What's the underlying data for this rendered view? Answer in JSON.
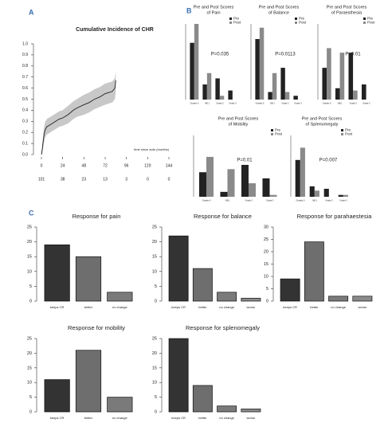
{
  "chart_data": [
    {
      "type": "line",
      "panel": "A",
      "title": "Cumulative Incidence of CHR",
      "x": [
        0,
        1,
        2,
        3,
        4,
        6,
        8,
        10,
        12,
        16,
        20,
        24,
        30,
        36,
        40,
        48,
        54,
        60,
        66,
        72,
        76,
        80,
        83,
        84
      ],
      "series": [
        {
          "color": "#222222",
          "band_color": "#c8c8c8",
          "values": [
            0,
            0.05,
            0.12,
            0.18,
            0.22,
            0.25,
            0.26,
            0.27,
            0.28,
            0.3,
            0.32,
            0.33,
            0.36,
            0.4,
            0.42,
            0.45,
            0.47,
            0.5,
            0.52,
            0.55,
            0.56,
            0.57,
            0.6,
            0.67
          ],
          "lower": [
            0,
            0.01,
            0.06,
            0.11,
            0.15,
            0.18,
            0.19,
            0.2,
            0.21,
            0.23,
            0.25,
            0.26,
            0.28,
            0.32,
            0.34,
            0.36,
            0.38,
            0.41,
            0.43,
            0.45,
            0.46,
            0.47,
            0.5,
            0.57
          ],
          "upper": [
            0,
            0.09,
            0.18,
            0.25,
            0.29,
            0.32,
            0.33,
            0.34,
            0.35,
            0.37,
            0.39,
            0.4,
            0.44,
            0.48,
            0.5,
            0.54,
            0.56,
            0.59,
            0.61,
            0.64,
            0.65,
            0.66,
            0.69,
            0.76
          ]
        }
      ],
      "xlim": [
        0,
        144
      ],
      "xticks": [
        0,
        24,
        48,
        72,
        96,
        120,
        144
      ],
      "ylim": [
        0,
        1
      ],
      "yticks": [
        {
          "value": 0,
          "label": "0.0"
        },
        0.1,
        0.2,
        0.3,
        0.4,
        0.5,
        0.6,
        0.7,
        0.8,
        0.9,
        {
          "value": 1,
          "label": "1.0"
        }
      ],
      "xlabel": "time since auto (months)",
      "at_risk": [
        101,
        38,
        23,
        13,
        3,
        0,
        0
      ]
    },
    {
      "type": "grouped_bar",
      "panel": "B",
      "title": [
        "Pre and Post Scores",
        "of Pain"
      ],
      "annotation": "P=0.035",
      "categories": [
        "Grades 0",
        "NB 1",
        "Grade 2",
        "Grade 3"
      ],
      "ylim": [
        0,
        1
      ],
      "series": [
        {
          "name": "Pre",
          "color": "#222222",
          "values": [
            0.75,
            0.2,
            0.28,
            0.12
          ]
        },
        {
          "name": "Post",
          "color": "#8a8a8a",
          "values": [
            1.0,
            0.35,
            0.05,
            0
          ]
        }
      ]
    },
    {
      "type": "grouped_bar",
      "title": [
        "Pre and Post Scores",
        "of Balance"
      ],
      "annotation": "P=0.0113",
      "categories": [
        "Grades 0",
        "NB 1",
        "Grade 2",
        "Grade 3"
      ],
      "ylim": [
        0,
        1
      ],
      "series": [
        {
          "name": "Pre",
          "color": "#222222",
          "values": [
            0.8,
            0.1,
            0.42,
            0.05
          ]
        },
        {
          "name": "Post",
          "color": "#8a8a8a",
          "values": [
            0.95,
            0.35,
            0.1,
            0
          ]
        }
      ]
    },
    {
      "type": "grouped_bar",
      "title": [
        "Pre and Post Scores",
        "of Paraesthesia"
      ],
      "annotation": "P=0.01",
      "categories": [
        "Grades 0",
        "NB 1",
        "Grade 2",
        "Grade 3"
      ],
      "ylim": [
        0,
        1
      ],
      "series": [
        {
          "name": "Pre",
          "color": "#222222",
          "values": [
            0.42,
            0.15,
            0.62,
            0.2
          ]
        },
        {
          "name": "Post",
          "color": "#8a8a8a",
          "values": [
            0.68,
            0.62,
            0.12,
            0
          ]
        }
      ]
    },
    {
      "type": "grouped_bar",
      "title": [
        "Pre and Post Scores",
        "of Mobility"
      ],
      "annotation": "P=0.01",
      "categories": [
        "Grades 0",
        "NB 1",
        "Grade 2",
        "Grade 3"
      ],
      "ylim": [
        0,
        1
      ],
      "series": [
        {
          "name": "Pre",
          "color": "#222222",
          "values": [
            0.4,
            0.08,
            0.52,
            0.3
          ]
        },
        {
          "name": "Post",
          "color": "#8a8a8a",
          "values": [
            0.65,
            0.45,
            0.22,
            0.03
          ]
        }
      ]
    },
    {
      "type": "grouped_bar",
      "title": [
        "Pre and Post Scores",
        "of Splenomegaly"
      ],
      "annotation": "P=0.007",
      "categories": [
        "Grades 0",
        "NB 1",
        "Grade 2",
        "Grade 3"
      ],
      "ylim": [
        0,
        1
      ],
      "series": [
        {
          "name": "Pre",
          "color": "#222222",
          "values": [
            0.6,
            0.17,
            0.13,
            0.03
          ]
        },
        {
          "name": "Post",
          "color": "#8a8a8a",
          "values": [
            0.8,
            0.1,
            0,
            0.03
          ]
        }
      ]
    },
    {
      "type": "bar",
      "panel": "C",
      "title": "Response for pain",
      "categories": [
        "keeps CR",
        "better",
        "no change"
      ],
      "values": [
        19,
        15,
        3
      ],
      "colors": [
        "#333333",
        "#6e6e6e",
        "#7a7a7a"
      ],
      "ylim": [
        0,
        25
      ],
      "yticks": [
        0,
        5,
        10,
        15,
        20,
        25
      ]
    },
    {
      "type": "bar",
      "title": "Response for balance",
      "categories": [
        "keeps CR",
        "better",
        "no change",
        "worse"
      ],
      "values": [
        22,
        11,
        3,
        1
      ],
      "colors": [
        "#333333",
        "#6e6e6e",
        "#7a7a7a",
        "#8a8a8a"
      ],
      "ylim": [
        0,
        25
      ],
      "yticks": [
        0,
        5,
        10,
        15,
        20,
        25
      ]
    },
    {
      "type": "bar",
      "title": "Response for parahaestesia",
      "categories": [
        "keeps CR",
        "better",
        "no change",
        "worse"
      ],
      "values": [
        9,
        24,
        2,
        2
      ],
      "colors": [
        "#333333",
        "#6e6e6e",
        "#7a7a7a",
        "#8a8a8a"
      ],
      "ylim": [
        0,
        30
      ],
      "yticks": [
        0,
        5,
        10,
        15,
        20,
        25,
        30
      ]
    },
    {
      "type": "bar",
      "title": "Response for mobility",
      "categories": [
        "keeps CR",
        "better",
        "no change"
      ],
      "values": [
        11,
        21,
        5
      ],
      "colors": [
        "#333333",
        "#6e6e6e",
        "#7a7a7a"
      ],
      "ylim": [
        0,
        25
      ],
      "yticks": [
        0,
        5,
        10,
        15,
        20,
        25
      ]
    },
    {
      "type": "bar",
      "title": "Response for splenomegaly",
      "categories": [
        "keeps CR",
        "better",
        "no change",
        "worse"
      ],
      "values": [
        25,
        9,
        2,
        1
      ],
      "colors": [
        "#333333",
        "#6e6e6e",
        "#7a7a7a",
        "#8a8a8a"
      ],
      "ylim": [
        0,
        25
      ],
      "yticks": [
        0,
        5,
        10,
        15,
        20,
        25
      ]
    }
  ]
}
